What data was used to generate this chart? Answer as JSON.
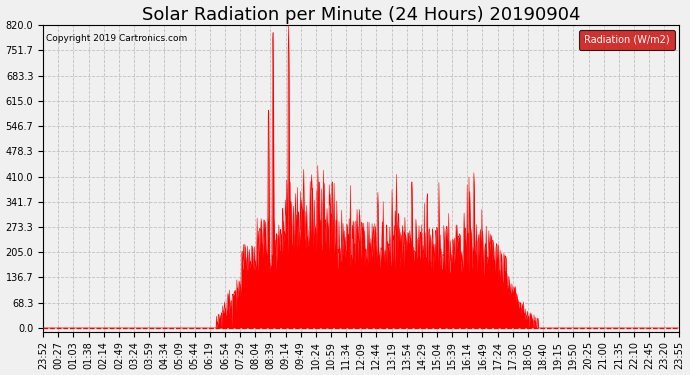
{
  "title": "Solar Radiation per Minute (24 Hours) 20190904",
  "copyright_text": "Copyright 2019 Cartronics.com",
  "legend_label": "Radiation (W/m2)",
  "y_ticks": [
    0.0,
    68.3,
    136.7,
    205.0,
    273.3,
    341.7,
    410.0,
    478.3,
    546.7,
    615.0,
    683.3,
    751.7,
    820.0
  ],
  "ylim_min": -10,
  "ylim_max": 820.0,
  "fill_color": "#FF0000",
  "line_color": "#FF0000",
  "background_color": "#F0F0F0",
  "grid_color": "#BBBBBB",
  "legend_bg": "#CC0000",
  "legend_text_color": "#FFFFFF",
  "title_fontsize": 13,
  "tick_fontsize": 7,
  "x_labels": [
    "23:52",
    "00:27",
    "01:03",
    "01:38",
    "02:14",
    "02:49",
    "03:24",
    "03:59",
    "04:34",
    "05:09",
    "05:44",
    "06:19",
    "06:54",
    "07:29",
    "08:04",
    "08:39",
    "09:14",
    "09:49",
    "10:24",
    "10:59",
    "11:34",
    "12:09",
    "12:44",
    "13:19",
    "13:54",
    "14:29",
    "15:04",
    "15:39",
    "16:14",
    "16:49",
    "17:24",
    "17:30",
    "18:05",
    "18:40",
    "19:15",
    "19:50",
    "20:25",
    "21:00",
    "21:35",
    "22:10",
    "22:45",
    "23:20",
    "23:55"
  ]
}
